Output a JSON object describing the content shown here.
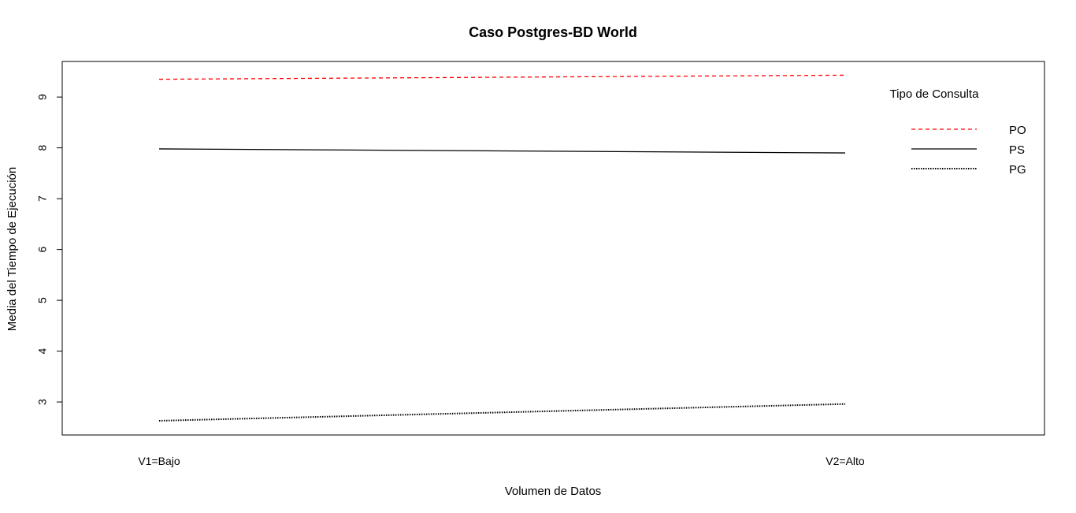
{
  "chart_data": {
    "type": "line",
    "title": "Caso Postgres-BD World",
    "xlabel": "Volumen de Datos",
    "ylabel": "Media del Tiempo de Ejecución",
    "categories": [
      "V1=Bajo",
      "V2=Alto"
    ],
    "yticks": [
      3,
      4,
      5,
      6,
      7,
      8,
      9
    ],
    "ylim": [
      2.35,
      9.7
    ],
    "grid": false,
    "legend": {
      "title": "Tipo de Consulta",
      "placement": "top-right",
      "entries": [
        "PO",
        "PS",
        "PG"
      ]
    },
    "series": [
      {
        "name": "PO",
        "values": [
          9.35,
          9.43
        ],
        "color": "#ff0000",
        "style": "dashed"
      },
      {
        "name": "PS",
        "values": [
          7.98,
          7.9
        ],
        "color": "#000000",
        "style": "solid"
      },
      {
        "name": "PG",
        "values": [
          2.63,
          2.96
        ],
        "color": "#000000",
        "style": "dotted"
      }
    ]
  }
}
